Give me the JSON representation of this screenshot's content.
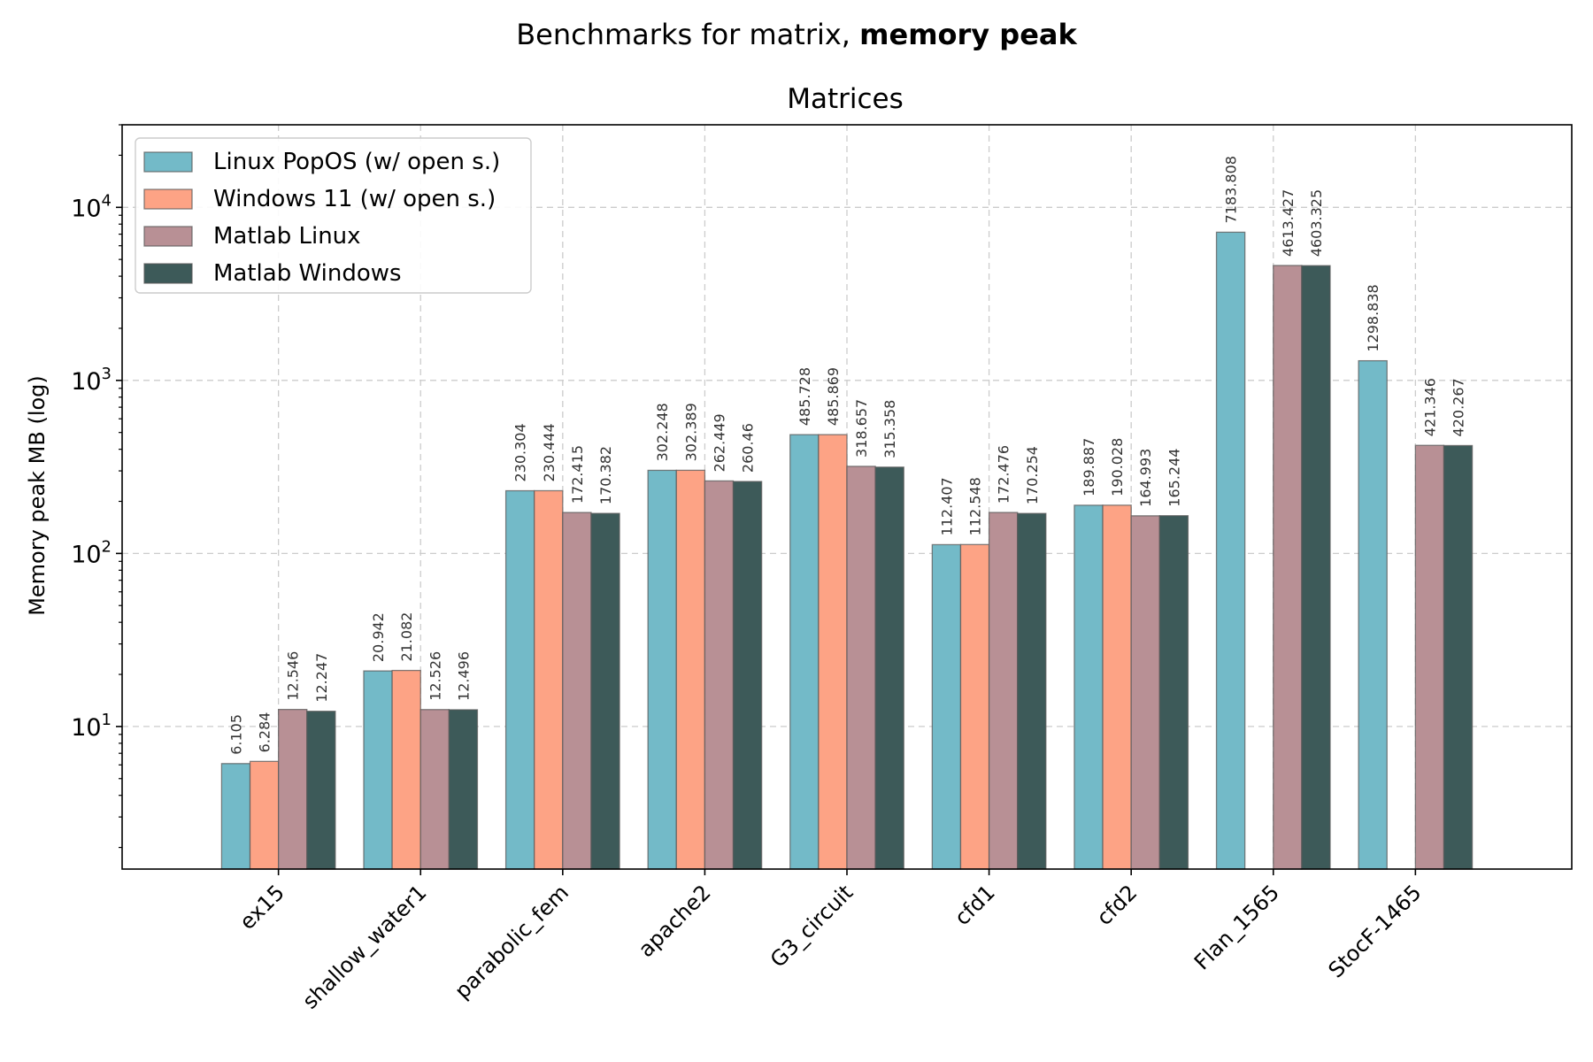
{
  "chart_data": {
    "type": "bar",
    "suptitle_prefix": "Benchmarks for matrix, ",
    "suptitle_bold": "memory peak",
    "title": "Matrices",
    "xlabel": "",
    "ylabel": "Memory peak MB (log)",
    "yscale": "log",
    "ylim": [
      1.5,
      30000
    ],
    "yticks": [
      {
        "value": 10,
        "base": "10",
        "exp": "1"
      },
      {
        "value": 100,
        "base": "10",
        "exp": "2"
      },
      {
        "value": 1000,
        "base": "10",
        "exp": "3"
      },
      {
        "value": 10000,
        "base": "10",
        "exp": "4"
      }
    ],
    "grid": true,
    "legend_position": "upper-left",
    "categories": [
      "ex15",
      "shallow_water1",
      "parabolic_fem",
      "apache2",
      "G3_circuit",
      "cfd1",
      "cfd2",
      "Flan_1565",
      "StocF-1465"
    ],
    "series": [
      {
        "name": "Linux PopOS (w/ open s.)",
        "color": "#73bac8",
        "values": [
          6.105,
          20.942,
          230.304,
          302.248,
          485.728,
          112.407,
          189.887,
          7183.808,
          1298.838
        ],
        "labels": [
          "6.105",
          "20.942",
          "230.304",
          "302.248",
          "485.728",
          "112.407",
          "189.887",
          "7183.808",
          "1298.838"
        ]
      },
      {
        "name": "Windows 11 (w/ open s.)",
        "color": "#fda385",
        "values": [
          6.284,
          21.082,
          230.444,
          302.389,
          485.869,
          112.548,
          190.028,
          null,
          null
        ],
        "labels": [
          "6.284",
          "21.082",
          "230.444",
          "302.389",
          "485.869",
          "112.548",
          "190.028",
          null,
          null
        ]
      },
      {
        "name": "Matlab Linux",
        "color": "#b89095",
        "values": [
          12.546,
          12.526,
          172.415,
          262.449,
          318.657,
          172.476,
          164.993,
          4613.427,
          421.346
        ],
        "labels": [
          "12.546",
          "12.526",
          "172.415",
          "262.449",
          "318.657",
          "172.476",
          "164.993",
          "4613.427",
          "421.346"
        ]
      },
      {
        "name": "Matlab Windows",
        "color": "#3d5a59",
        "values": [
          12.247,
          12.496,
          170.382,
          260.46,
          315.358,
          170.254,
          165.244,
          4603.325,
          420.267
        ],
        "labels": [
          "12.247",
          "12.496",
          "170.382",
          "260.46",
          "315.358",
          "170.254",
          "165.244",
          "4603.325",
          "420.267"
        ]
      }
    ]
  }
}
